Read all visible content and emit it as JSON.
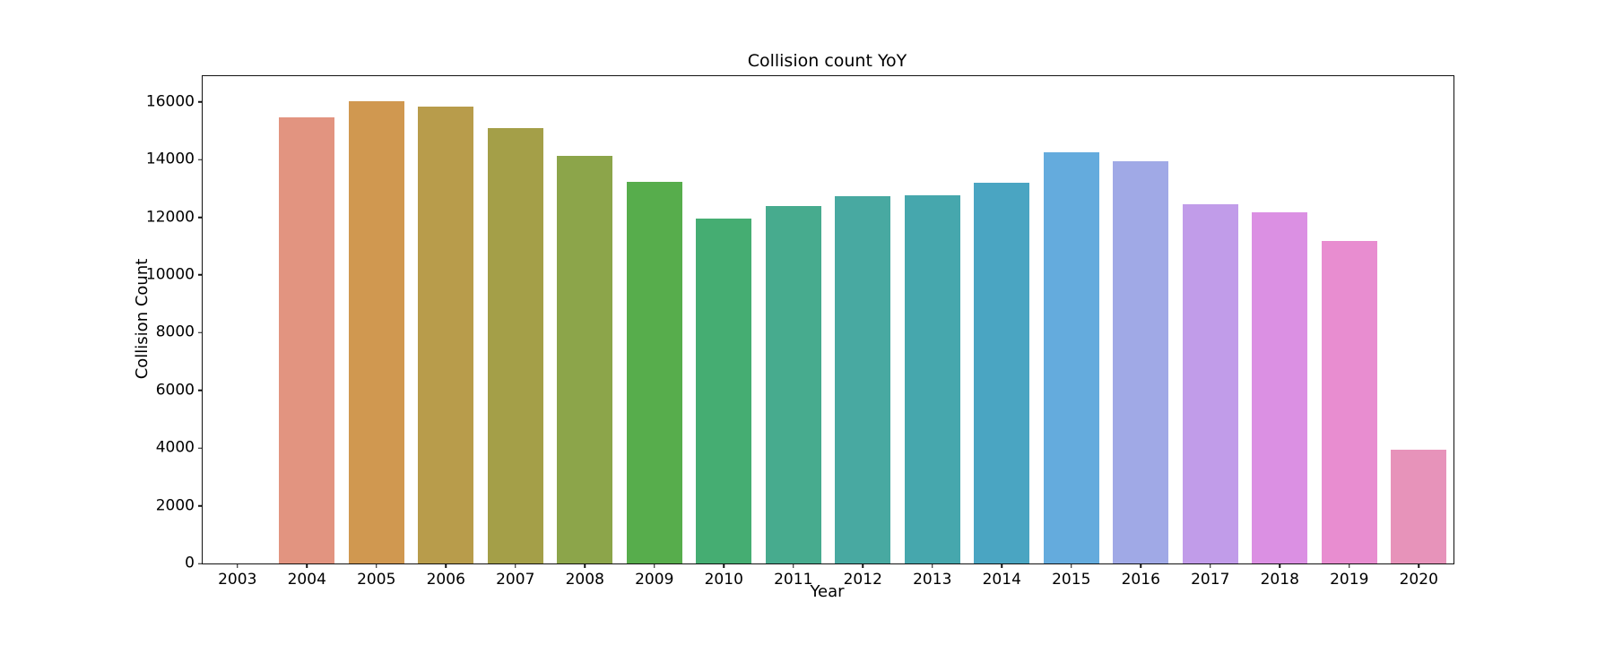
{
  "figure": {
    "title": "Collision count YoY",
    "xlabel": "Year",
    "ylabel": "Collision Count"
  },
  "chart_data": {
    "type": "bar",
    "title": "Collision count YoY",
    "xlabel": "Year",
    "ylabel": "Collision Count",
    "categories": [
      "2003",
      "2004",
      "2005",
      "2006",
      "2007",
      "2008",
      "2009",
      "2010",
      "2011",
      "2012",
      "2013",
      "2014",
      "2015",
      "2016",
      "2017",
      "2018",
      "2019",
      "2020"
    ],
    "values": [
      0,
      15450,
      16030,
      15840,
      15090,
      14130,
      13240,
      11960,
      12390,
      12730,
      12750,
      13200,
      14250,
      13940,
      12450,
      12170,
      11180,
      3950
    ],
    "bar_colors": [
      null,
      "#e29480",
      "#d09850",
      "#b89c4b",
      "#a49f48",
      "#8ca54a",
      "#57ad4c",
      "#45ad72",
      "#47ab8e",
      "#48a9a1",
      "#46a7ad",
      "#4aa5c2",
      "#64abdd",
      "#a0a9e6",
      "#c19ce9",
      "#db90e3",
      "#e88dd0",
      "#e793ba"
    ],
    "ylim": [
      0,
      16890
    ],
    "yticks": [
      0,
      2000,
      4000,
      6000,
      8000,
      10000,
      12000,
      14000,
      16000
    ],
    "ytick_labels": [
      "0",
      "2000",
      "4000",
      "6000",
      "8000",
      "10000",
      "12000",
      "14000",
      "16000"
    ],
    "grid": false,
    "legend": null,
    "bar_width_fraction": 0.8,
    "axis_color": "#111111",
    "background_color": "#ffffff"
  }
}
